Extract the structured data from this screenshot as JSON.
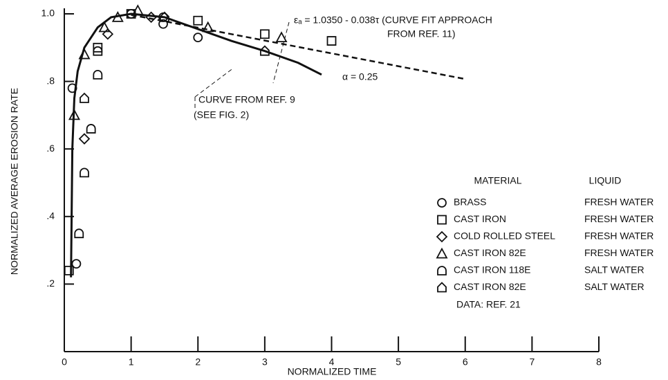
{
  "chart_data": {
    "type": "scatter",
    "xlabel": "NORMALIZED TIME",
    "ylabel": "NORMALIZED AVERAGE EROSION RATE",
    "xlim": [
      0,
      8
    ],
    "ylim": [
      0,
      1.0
    ],
    "xticks": [
      0,
      1,
      2,
      3,
      4,
      5,
      6,
      7,
      8
    ],
    "yticks": [
      {
        "value": 0.2,
        "label": ".2"
      },
      {
        "value": 0.4,
        "label": ".4"
      },
      {
        "value": 0.6,
        "label": ".6"
      },
      {
        "value": 0.8,
        "label": ".8"
      },
      {
        "value": 1.0,
        "label": "1.0"
      }
    ],
    "legend_headers": [
      "MATERIAL",
      "LIQUID"
    ],
    "legend_note": "DATA: REF. 21",
    "series": [
      {
        "name": "BRASS",
        "liquid": "FRESH WATER",
        "marker": "circle",
        "color": "#111",
        "x": [
          0.18,
          0.12,
          1.0,
          1.48,
          1.48,
          2.0
        ],
        "values": [
          0.26,
          0.78,
          1.0,
          0.99,
          0.97,
          0.93
        ]
      },
      {
        "name": "CAST IRON",
        "liquid": "FRESH WATER",
        "marker": "square",
        "color": "#111",
        "x": [
          0.07,
          0.5,
          1.0,
          2.0,
          3.0,
          4.0
        ],
        "values": [
          0.24,
          0.9,
          1.0,
          0.98,
          0.94,
          0.92
        ]
      },
      {
        "name": "COLD ROLLED STEEL",
        "liquid": "FRESH WATER",
        "marker": "diamond",
        "color": "#111",
        "x": [
          0.3,
          0.65,
          1.3
        ],
        "values": [
          0.63,
          0.94,
          0.99
        ]
      },
      {
        "name": "CAST IRON 82E",
        "liquid": "FRESH WATER",
        "marker": "triangle",
        "color": "#111",
        "x": [
          0.15,
          0.3,
          0.6,
          0.8,
          1.1,
          2.15,
          3.25
        ],
        "values": [
          0.7,
          0.88,
          0.96,
          0.99,
          1.01,
          0.96,
          0.93
        ]
      },
      {
        "name": "CAST IRON 118E",
        "liquid": "SALT WATER",
        "marker": "dshape",
        "color": "#111",
        "x": [
          0.22,
          0.3,
          0.4,
          0.5,
          0.5
        ],
        "values": [
          0.35,
          0.53,
          0.66,
          0.82,
          0.89
        ]
      },
      {
        "name": "CAST IRON 82E",
        "liquid": "SALT WATER",
        "marker": "house",
        "color": "#111",
        "x": [
          0.3,
          1.5,
          3.0
        ],
        "values": [
          0.75,
          0.99,
          0.89
        ]
      }
    ],
    "curves": [
      {
        "style": "solid",
        "x": [
          0.1,
          0.12,
          0.15,
          0.2,
          0.3,
          0.5,
          0.7,
          1.0,
          1.5,
          2.0,
          2.5,
          3.0,
          3.5,
          3.85
        ],
        "y": [
          0.22,
          0.6,
          0.75,
          0.83,
          0.9,
          0.96,
          0.99,
          1.0,
          0.99,
          0.955,
          0.92,
          0.89,
          0.855,
          0.82
        ]
      },
      {
        "style": "dashed",
        "x": [
          1.0,
          6.0
        ],
        "y": [
          0.997,
          0.807
        ]
      }
    ],
    "annotations": [
      "εₐ = 1.0350 - 0.038τ  (CURVE FIT APPROACH",
      "FROM REF. 11)",
      "CURVE FROM REF. 9",
      "(SEE FIG. 2)",
      "α = 0.25"
    ]
  }
}
